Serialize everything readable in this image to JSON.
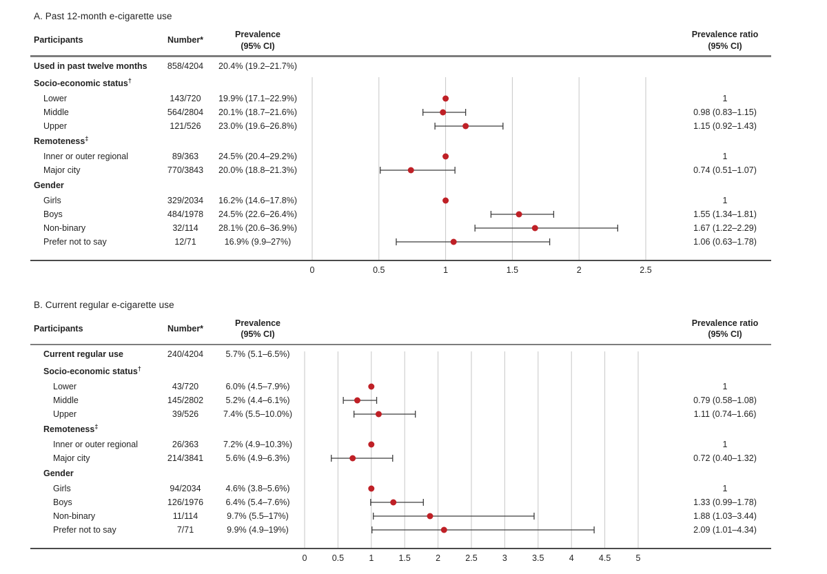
{
  "colors": {
    "point": "#bf2026",
    "ci_bar": "#3c3c3c",
    "gridline": "#c6c6c6",
    "header_rule": "#7d7d7d",
    "axis_line": "#4a4a4a",
    "text": "#232323"
  },
  "chart_data": [
    {
      "type": "scatter",
      "variant": "forest-plot",
      "title": "A. Past 12-month e-cigarette use",
      "xlabel": "",
      "xlim": [
        0,
        2.5
      ],
      "xticks": [
        0,
        0.5,
        1,
        1.5,
        2,
        2.5
      ],
      "grid": true,
      "columns": {
        "participants": "Participants",
        "number": "Number*",
        "prevalence": "Prevalence\n(95% CI)",
        "ratio": "Prevalence ratio\n(95% CI)"
      },
      "rows": [
        {
          "kind": "overall",
          "label": "Used in past twelve months",
          "number": "858/4204",
          "prevalence": "20.4% (19.2–21.7%)"
        },
        {
          "kind": "group",
          "label": "Socio-economic status",
          "footnote": "†"
        },
        {
          "kind": "item",
          "label": "Lower",
          "number": "143/720",
          "prevalence": "19.9% (17.1–22.9%)",
          "ratio": "1",
          "point": 1,
          "ci": null
        },
        {
          "kind": "item",
          "label": "Middle",
          "number": "564/2804",
          "prevalence": "20.1% (18.7–21.6%)",
          "ratio": "0.98 (0.83–1.15)",
          "point": 0.98,
          "ci": [
            0.83,
            1.15
          ]
        },
        {
          "kind": "item",
          "label": "Upper",
          "number": "121/526",
          "prevalence": "23.0% (19.6–26.8%)",
          "ratio": "1.15 (0.92–1.43)",
          "point": 1.15,
          "ci": [
            0.92,
            1.43
          ]
        },
        {
          "kind": "group",
          "label": "Remoteness",
          "footnote": "‡"
        },
        {
          "kind": "item",
          "label": "Inner or outer regional",
          "number": "89/363",
          "prevalence": "24.5% (20.4–29.2%)",
          "ratio": "1",
          "point": 1,
          "ci": null
        },
        {
          "kind": "item",
          "label": "Major city",
          "number": "770/3843",
          "prevalence": "20.0% (18.8–21.3%)",
          "ratio": "0.74 (0.51–1.07)",
          "point": 0.74,
          "ci": [
            0.51,
            1.07
          ]
        },
        {
          "kind": "group",
          "label": "Gender"
        },
        {
          "kind": "item",
          "label": "Girls",
          "number": "329/2034",
          "prevalence": "16.2% (14.6–17.8%)",
          "ratio": "1",
          "point": 1,
          "ci": null
        },
        {
          "kind": "item",
          "label": "Boys",
          "number": "484/1978",
          "prevalence": "24.5% (22.6–26.4%)",
          "ratio": "1.55 (1.34–1.81)",
          "point": 1.55,
          "ci": [
            1.34,
            1.81
          ]
        },
        {
          "kind": "item",
          "label": "Non-binary",
          "number": "32/114",
          "prevalence": "28.1% (20.6–36.9%)",
          "ratio": "1.67 (1.22–2.29)",
          "point": 1.67,
          "ci": [
            1.22,
            2.29
          ]
        },
        {
          "kind": "item",
          "label": "Prefer not to say",
          "number": "12/71",
          "prevalence": "16.9% (9.9–27%)",
          "ratio": "1.06 (0.63–1.78)",
          "point": 1.06,
          "ci": [
            0.63,
            1.78
          ]
        }
      ]
    },
    {
      "type": "scatter",
      "variant": "forest-plot",
      "title": "B. Current regular e-cigarette use",
      "xlabel": "",
      "xlim": [
        0,
        5
      ],
      "xticks": [
        0,
        0.5,
        1,
        1.5,
        2,
        2.5,
        3,
        3.5,
        4,
        4.5,
        5
      ],
      "grid": true,
      "columns": {
        "participants": "Participants",
        "number": "Number*",
        "prevalence": "Prevalence\n(95% CI)",
        "ratio": "Prevalence ratio\n(95% CI)"
      },
      "rows": [
        {
          "kind": "overall",
          "label": "Current regular use",
          "number": "240/4204",
          "prevalence": "5.7% (5.1–6.5%)"
        },
        {
          "kind": "group",
          "label": "Socio-economic status",
          "footnote": "†"
        },
        {
          "kind": "item",
          "label": "Lower",
          "number": "43/720",
          "prevalence": "6.0% (4.5–7.9%)",
          "ratio": "1",
          "point": 1,
          "ci": null
        },
        {
          "kind": "item",
          "label": "Middle",
          "number": "145/2802",
          "prevalence": "5.2% (4.4–6.1%)",
          "ratio": "0.79 (0.58–1.08)",
          "point": 0.79,
          "ci": [
            0.58,
            1.08
          ]
        },
        {
          "kind": "item",
          "label": "Upper",
          "number": "39/526",
          "prevalence": "7.4% (5.5–10.0%)",
          "ratio": "1.11 (0.74–1.66)",
          "point": 1.11,
          "ci": [
            0.74,
            1.66
          ]
        },
        {
          "kind": "group",
          "label": "Remoteness",
          "footnote": "‡"
        },
        {
          "kind": "item",
          "label": "Inner or outer regional",
          "number": "26/363",
          "prevalence": "7.2% (4.9–10.3%)",
          "ratio": "1",
          "point": 1,
          "ci": null
        },
        {
          "kind": "item",
          "label": "Major city",
          "number": "214/3841",
          "prevalence": "5.6% (4.9–6.3%)",
          "ratio": "0.72 (0.40–1.32)",
          "point": 0.72,
          "ci": [
            0.4,
            1.32
          ]
        },
        {
          "kind": "group",
          "label": "Gender"
        },
        {
          "kind": "item",
          "label": "Girls",
          "number": "94/2034",
          "prevalence": "4.6% (3.8–5.6%)",
          "ratio": "1",
          "point": 1,
          "ci": null
        },
        {
          "kind": "item",
          "label": "Boys",
          "number": "126/1976",
          "prevalence": "6.4% (5.4–7.6%)",
          "ratio": "1.33 (0.99–1.78)",
          "point": 1.33,
          "ci": [
            0.99,
            1.78
          ]
        },
        {
          "kind": "item",
          "label": "Non-binary",
          "number": "11/114",
          "prevalence": "9.7% (5.5–17%)",
          "ratio": "1.88 (1.03–3.44)",
          "point": 1.88,
          "ci": [
            1.03,
            3.44
          ]
        },
        {
          "kind": "item",
          "label": "Prefer not to say",
          "number": "7/71",
          "prevalence": "9.9% (4.9–19%)",
          "ratio": "2.09 (1.01–4.34)",
          "point": 2.09,
          "ci": [
            1.01,
            4.34
          ]
        }
      ]
    }
  ]
}
